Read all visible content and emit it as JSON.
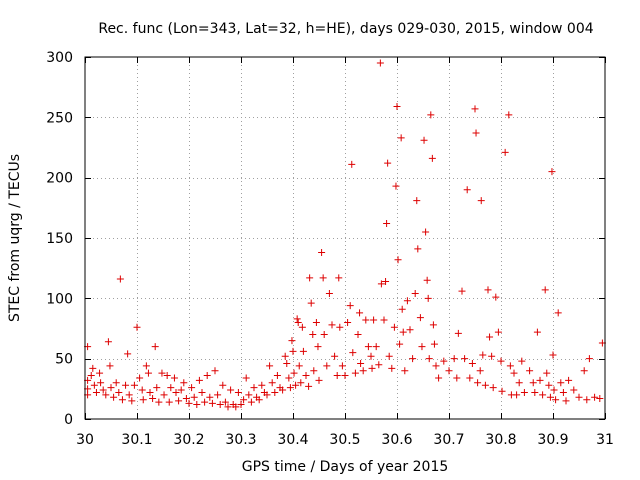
{
  "chart_data": {
    "type": "scatter",
    "title": "Rec. func (Lon=343, Lat=32, h=HE), days 029-030, 2015, window 004",
    "xlabel": "GPS time / Days of year 2015",
    "ylabel": "STEC from uqrg / TECUs",
    "xlim": [
      30,
      31
    ],
    "ylim": [
      0,
      300
    ],
    "grid": true,
    "marker": "+",
    "color": "#dd0000",
    "x_ticks": [
      30,
      30.1,
      30.2,
      30.3,
      30.4,
      30.5,
      30.6,
      30.7,
      30.8,
      30.9,
      31
    ],
    "x_tick_labels": [
      "30",
      "30.1",
      "30.2",
      "30.3",
      "30.4",
      "30.5",
      "30.6",
      "30.7",
      "30.8",
      "30.9",
      "31"
    ],
    "y_ticks": [
      0,
      50,
      100,
      150,
      200,
      250,
      300
    ],
    "y_tick_labels": [
      "0",
      "50",
      "100",
      "150",
      "200",
      "250",
      "300"
    ],
    "series": [
      {
        "name": "STEC",
        "points": [
          [
            30.005,
            60
          ],
          [
            30.005,
            32
          ],
          [
            30.005,
            25
          ],
          [
            30.005,
            20
          ],
          [
            30.012,
            36
          ],
          [
            30.015,
            42
          ],
          [
            30.018,
            28
          ],
          [
            30.022,
            22
          ],
          [
            30.028,
            38
          ],
          [
            30.03,
            30
          ],
          [
            30.035,
            24
          ],
          [
            30.04,
            20
          ],
          [
            30.045,
            64
          ],
          [
            30.048,
            44
          ],
          [
            30.05,
            26
          ],
          [
            30.055,
            18
          ],
          [
            30.06,
            30
          ],
          [
            30.065,
            22
          ],
          [
            30.068,
            116
          ],
          [
            30.072,
            16
          ],
          [
            30.078,
            28
          ],
          [
            30.082,
            54
          ],
          [
            30.085,
            20
          ],
          [
            30.09,
            15
          ],
          [
            30.095,
            28
          ],
          [
            30.1,
            76
          ],
          [
            30.105,
            34
          ],
          [
            30.11,
            24
          ],
          [
            30.112,
            16
          ],
          [
            30.118,
            44
          ],
          [
            30.122,
            38
          ],
          [
            30.125,
            22
          ],
          [
            30.13,
            17
          ],
          [
            30.135,
            60
          ],
          [
            30.138,
            26
          ],
          [
            30.142,
            14
          ],
          [
            30.148,
            38
          ],
          [
            30.152,
            20
          ],
          [
            30.158,
            36
          ],
          [
            30.162,
            14
          ],
          [
            30.165,
            26
          ],
          [
            30.172,
            34
          ],
          [
            30.175,
            22
          ],
          [
            30.18,
            15
          ],
          [
            30.185,
            24
          ],
          [
            30.19,
            30
          ],
          [
            30.195,
            17
          ],
          [
            30.2,
            13
          ],
          [
            30.205,
            26
          ],
          [
            30.21,
            18
          ],
          [
            30.215,
            12
          ],
          [
            30.22,
            32
          ],
          [
            30.225,
            22
          ],
          [
            30.23,
            14
          ],
          [
            30.235,
            36
          ],
          [
            30.24,
            18
          ],
          [
            30.245,
            13
          ],
          [
            30.25,
            40
          ],
          [
            30.255,
            20
          ],
          [
            30.26,
            12
          ],
          [
            30.265,
            28
          ],
          [
            30.27,
            14
          ],
          [
            30.275,
            10
          ],
          [
            30.28,
            24
          ],
          [
            30.285,
            12
          ],
          [
            30.29,
            10
          ],
          [
            30.295,
            22
          ],
          [
            30.3,
            12
          ],
          [
            30.305,
            16
          ],
          [
            30.31,
            34
          ],
          [
            30.315,
            20
          ],
          [
            30.32,
            14
          ],
          [
            30.325,
            26
          ],
          [
            30.33,
            18
          ],
          [
            30.335,
            16
          ],
          [
            30.34,
            28
          ],
          [
            30.345,
            22
          ],
          [
            30.35,
            20
          ],
          [
            30.355,
            44
          ],
          [
            30.36,
            30
          ],
          [
            30.365,
            22
          ],
          [
            30.37,
            36
          ],
          [
            30.375,
            26
          ],
          [
            30.38,
            24
          ],
          [
            30.385,
            52
          ],
          [
            30.388,
            46
          ],
          [
            30.392,
            34
          ],
          [
            30.395,
            26
          ],
          [
            30.398,
            65
          ],
          [
            30.4,
            56
          ],
          [
            30.402,
            38
          ],
          [
            30.405,
            28
          ],
          [
            30.408,
            83
          ],
          [
            30.41,
            80
          ],
          [
            30.412,
            44
          ],
          [
            30.415,
            30
          ],
          [
            30.418,
            76
          ],
          [
            30.42,
            56
          ],
          [
            30.425,
            36
          ],
          [
            30.43,
            27
          ],
          [
            30.432,
            117
          ],
          [
            30.435,
            96
          ],
          [
            30.438,
            70
          ],
          [
            30.44,
            40
          ],
          [
            30.445,
            80
          ],
          [
            30.448,
            60
          ],
          [
            30.45,
            32
          ],
          [
            30.455,
            138
          ],
          [
            30.458,
            117
          ],
          [
            30.46,
            70
          ],
          [
            30.465,
            44
          ],
          [
            30.47,
            104
          ],
          [
            30.475,
            78
          ],
          [
            30.48,
            52
          ],
          [
            30.485,
            36
          ],
          [
            30.488,
            117
          ],
          [
            30.49,
            76
          ],
          [
            30.495,
            44
          ],
          [
            30.5,
            36
          ],
          [
            30.505,
            80
          ],
          [
            30.51,
            94
          ],
          [
            30.513,
            211
          ],
          [
            30.515,
            55
          ],
          [
            30.52,
            38
          ],
          [
            30.525,
            70
          ],
          [
            30.528,
            88
          ],
          [
            30.53,
            46
          ],
          [
            30.535,
            40
          ],
          [
            30.54,
            82
          ],
          [
            30.545,
            60
          ],
          [
            30.55,
            52
          ],
          [
            30.552,
            42
          ],
          [
            30.555,
            82
          ],
          [
            30.56,
            60
          ],
          [
            30.565,
            45
          ],
          [
            30.568,
            295
          ],
          [
            30.57,
            112
          ],
          [
            30.575,
            82
          ],
          [
            30.578,
            114
          ],
          [
            30.58,
            162
          ],
          [
            30.582,
            212
          ],
          [
            30.585,
            52
          ],
          [
            30.59,
            42
          ],
          [
            30.595,
            76
          ],
          [
            30.598,
            193
          ],
          [
            30.6,
            259
          ],
          [
            30.602,
            132
          ],
          [
            30.605,
            62
          ],
          [
            30.608,
            233
          ],
          [
            30.61,
            91
          ],
          [
            30.612,
            72
          ],
          [
            30.615,
            40
          ],
          [
            30.62,
            98
          ],
          [
            30.625,
            74
          ],
          [
            30.63,
            50
          ],
          [
            30.635,
            104
          ],
          [
            30.638,
            181
          ],
          [
            30.64,
            141
          ],
          [
            30.645,
            84
          ],
          [
            30.648,
            60
          ],
          [
            30.652,
            231
          ],
          [
            30.655,
            155
          ],
          [
            30.658,
            115
          ],
          [
            30.66,
            100
          ],
          [
            30.662,
            50
          ],
          [
            30.665,
            252
          ],
          [
            30.668,
            216
          ],
          [
            30.67,
            78
          ],
          [
            30.672,
            62
          ],
          [
            30.675,
            44
          ],
          [
            30.68,
            34
          ],
          [
            30.69,
            48
          ],
          [
            30.7,
            40
          ],
          [
            30.71,
            50
          ],
          [
            30.715,
            34
          ],
          [
            30.718,
            71
          ],
          [
            30.725,
            106
          ],
          [
            30.73,
            50
          ],
          [
            30.735,
            190
          ],
          [
            30.74,
            34
          ],
          [
            30.745,
            46
          ],
          [
            30.75,
            257
          ],
          [
            30.752,
            237
          ],
          [
            30.755,
            30
          ],
          [
            30.76,
            40
          ],
          [
            30.762,
            181
          ],
          [
            30.765,
            53
          ],
          [
            30.77,
            28
          ],
          [
            30.775,
            107
          ],
          [
            30.778,
            68
          ],
          [
            30.782,
            52
          ],
          [
            30.785,
            26
          ],
          [
            30.79,
            101
          ],
          [
            30.795,
            72
          ],
          [
            30.8,
            48
          ],
          [
            30.802,
            23
          ],
          [
            30.808,
            221
          ],
          [
            30.815,
            252
          ],
          [
            30.818,
            44
          ],
          [
            30.82,
            20
          ],
          [
            30.825,
            38
          ],
          [
            30.83,
            20
          ],
          [
            30.835,
            30
          ],
          [
            30.84,
            48
          ],
          [
            30.845,
            22
          ],
          [
            30.855,
            40
          ],
          [
            30.862,
            30
          ],
          [
            30.865,
            22
          ],
          [
            30.87,
            72
          ],
          [
            30.875,
            32
          ],
          [
            30.88,
            20
          ],
          [
            30.885,
            107
          ],
          [
            30.888,
            38
          ],
          [
            30.892,
            28
          ],
          [
            30.895,
            18
          ],
          [
            30.898,
            205
          ],
          [
            30.9,
            53
          ],
          [
            30.902,
            24
          ],
          [
            30.905,
            16
          ],
          [
            30.91,
            88
          ],
          [
            30.915,
            30
          ],
          [
            30.92,
            22
          ],
          [
            30.925,
            15
          ],
          [
            30.93,
            32
          ],
          [
            30.94,
            24
          ],
          [
            30.95,
            18
          ],
          [
            30.96,
            40
          ],
          [
            30.965,
            16
          ],
          [
            30.97,
            50
          ],
          [
            30.98,
            18
          ],
          [
            30.99,
            17
          ],
          [
            30.995,
            63
          ]
        ]
      }
    ]
  }
}
